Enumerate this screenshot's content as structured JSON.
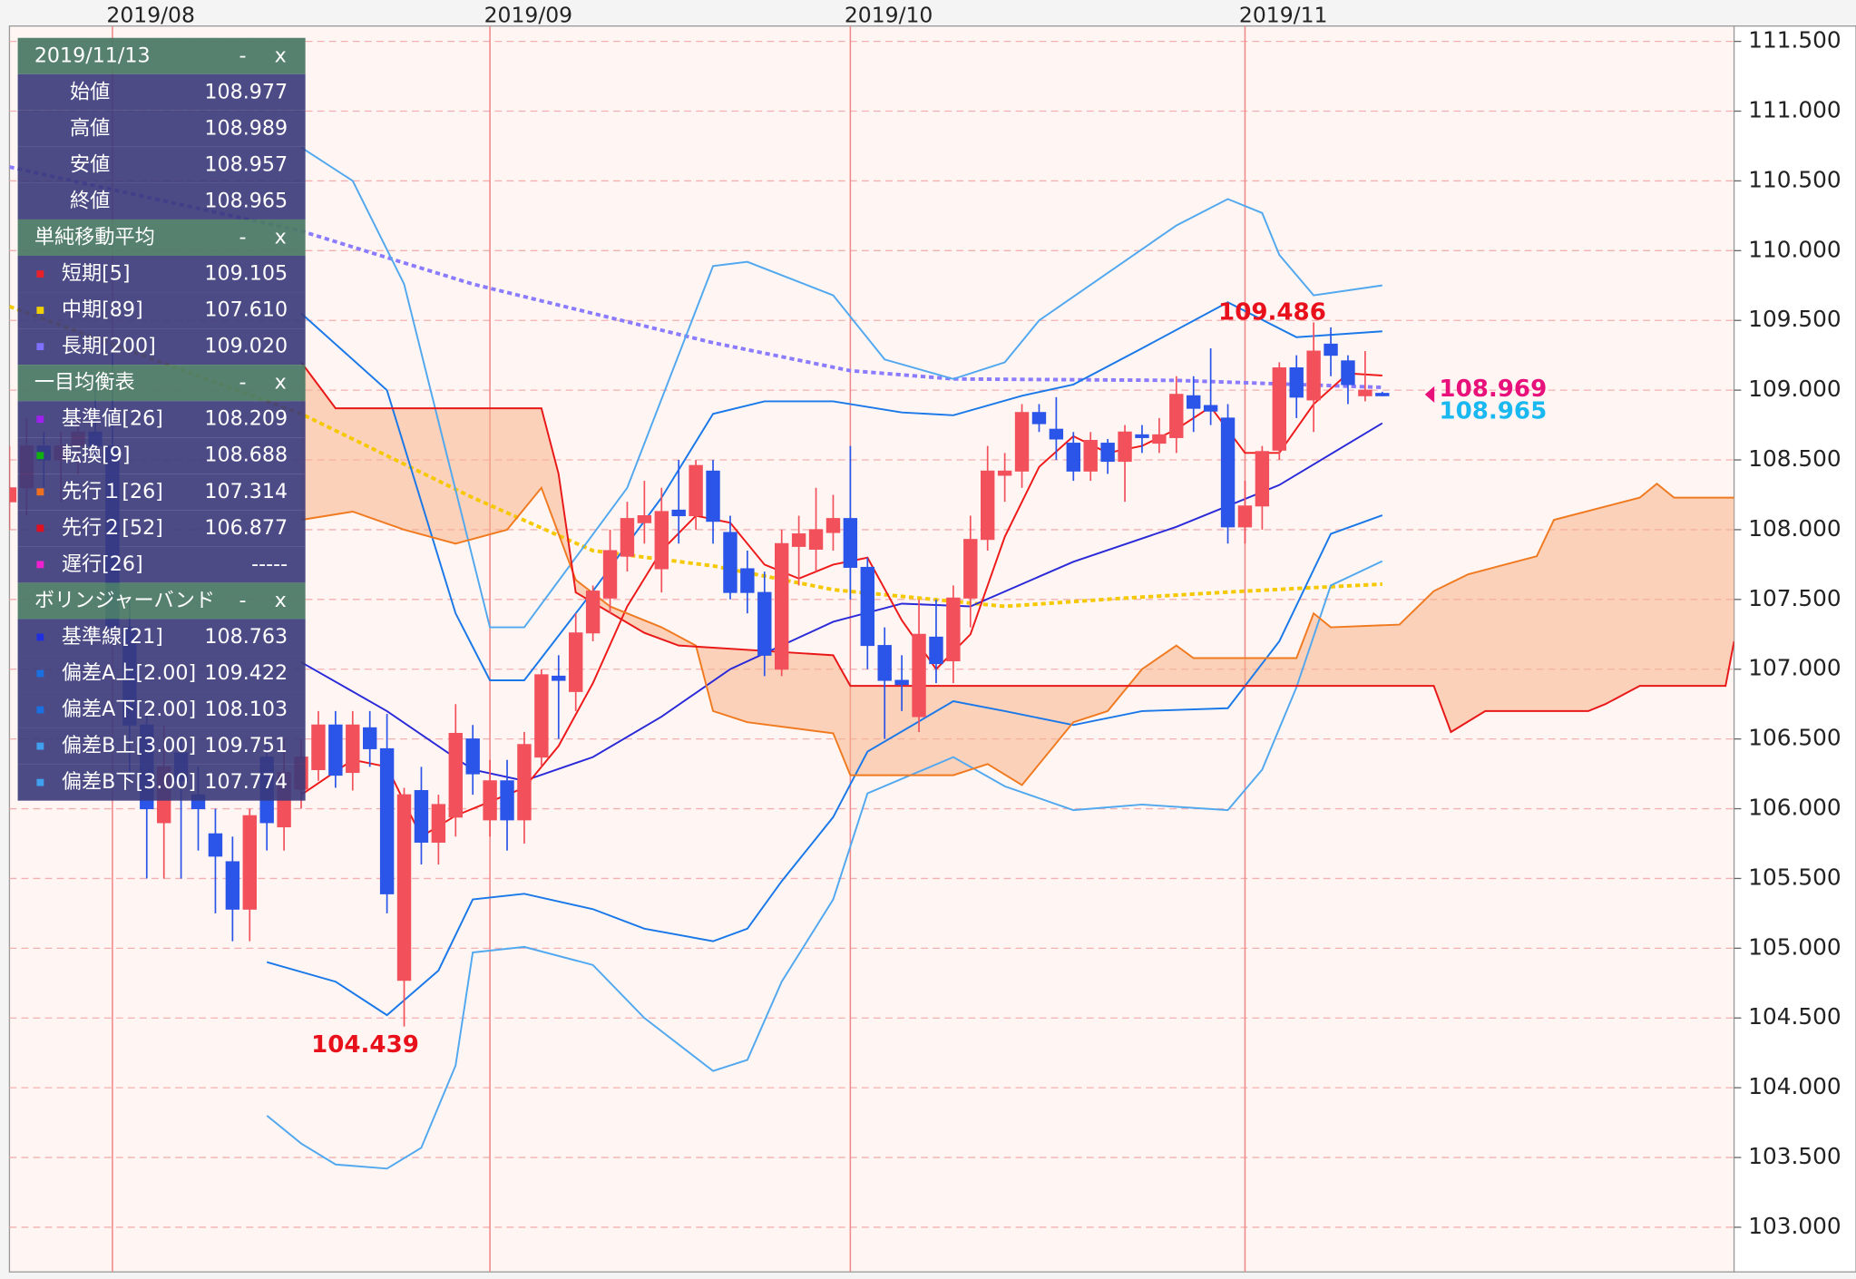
{
  "chart_data": {
    "type": "candlestick",
    "categories": [
      null,
      null,
      null,
      null,
      null,
      null,
      "2019/08",
      null,
      null,
      null,
      null,
      null,
      null,
      null,
      null,
      null,
      null,
      null,
      null,
      null,
      null,
      null,
      null,
      null,
      null,
      null,
      null,
      null,
      "2019/09",
      null,
      null,
      null,
      null,
      null,
      null,
      null,
      null,
      null,
      null,
      null,
      null,
      null,
      null,
      null,
      null,
      null,
      null,
      null,
      null,
      "2019/10",
      null,
      null,
      null,
      null,
      null,
      null,
      null,
      null,
      null,
      null,
      null,
      null,
      null,
      null,
      null,
      null,
      null,
      null,
      null,
      null,
      null,
      null,
      "2019/11",
      null,
      null,
      null,
      null,
      null,
      null,
      null,
      null
    ],
    "open": [
      108.2,
      108.3,
      108.6,
      108.5,
      108.6,
      108.7,
      108.6,
      107.3,
      106.6,
      105.9,
      106.4,
      106.1,
      105.82,
      105.62,
      105.28,
      106.37,
      105.87,
      106.14,
      106.28,
      106.6,
      106.26,
      106.58,
      106.43,
      104.77,
      106.13,
      105.76,
      105.94,
      106.5,
      105.92,
      106.2,
      105.92,
      106.37,
      106.95,
      106.84,
      107.26,
      107.51,
      107.81,
      108.05,
      107.72,
      108.14,
      108.1,
      108.42,
      107.98,
      107.72,
      107.55,
      107.0,
      107.88,
      107.86,
      107.98,
      108.08,
      107.73,
      107.17,
      106.92,
      106.66,
      107.23,
      107.06,
      107.51,
      107.93,
      108.39,
      108.42,
      108.84,
      108.72,
      108.62,
      108.42,
      108.62,
      108.49,
      108.68,
      108.62,
      108.66,
      108.96,
      108.89,
      108.8,
      108.02,
      108.17,
      108.57,
      109.16,
      108.93,
      109.33,
      109.21,
      108.96,
      108.977
    ],
    "high": [
      108.6,
      108.8,
      108.7,
      108.7,
      108.8,
      109.1,
      109.3,
      107.5,
      106.7,
      106.6,
      106.5,
      106.3,
      106.0,
      105.8,
      106.0,
      106.5,
      106.5,
      106.5,
      106.7,
      106.7,
      106.7,
      106.7,
      106.68,
      106.15,
      106.3,
      106.1,
      106.75,
      106.6,
      106.35,
      106.35,
      106.55,
      107.0,
      107.1,
      107.4,
      107.6,
      108.0,
      108.2,
      108.35,
      108.3,
      108.5,
      108.5,
      108.5,
      108.1,
      107.85,
      107.7,
      108.0,
      108.1,
      108.3,
      108.25,
      108.6,
      107.8,
      107.3,
      107.1,
      107.5,
      107.5,
      107.6,
      108.1,
      108.6,
      108.55,
      108.9,
      108.9,
      108.95,
      108.7,
      108.7,
      108.65,
      108.75,
      108.75,
      108.8,
      109.1,
      109.1,
      109.3,
      108.9,
      108.35,
      108.6,
      109.2,
      109.25,
      109.486,
      109.45,
      109.25,
      109.28,
      108.989
    ],
    "low": [
      108.0,
      108.1,
      108.3,
      108.2,
      108.4,
      108.5,
      107.2,
      106.2,
      105.5,
      105.5,
      105.5,
      105.7,
      105.25,
      105.05,
      105.05,
      105.7,
      105.7,
      106.0,
      106.2,
      106.15,
      106.13,
      106.3,
      105.25,
      104.439,
      105.6,
      105.6,
      105.8,
      106.1,
      105.8,
      105.7,
      105.75,
      106.3,
      106.5,
      106.7,
      107.2,
      107.4,
      107.7,
      107.9,
      107.55,
      107.9,
      108.0,
      107.9,
      107.5,
      107.4,
      106.95,
      106.95,
      107.6,
      107.7,
      107.85,
      107.5,
      107.0,
      106.5,
      106.7,
      106.55,
      106.9,
      106.9,
      107.3,
      107.85,
      108.2,
      108.3,
      108.7,
      108.5,
      108.35,
      108.35,
      108.4,
      108.2,
      108.55,
      108.55,
      108.55,
      108.7,
      108.75,
      107.9,
      107.9,
      108.0,
      108.5,
      108.8,
      108.7,
      109.1,
      108.9,
      108.92,
      108.957
    ],
    "close": [
      108.3,
      108.6,
      108.5,
      108.6,
      108.7,
      108.6,
      107.3,
      106.6,
      106.0,
      106.3,
      106.2,
      106.0,
      105.66,
      105.28,
      105.95,
      105.9,
      106.26,
      106.37,
      106.6,
      106.24,
      106.6,
      106.43,
      105.39,
      106.1,
      105.76,
      106.03,
      106.54,
      106.25,
      106.2,
      105.92,
      106.46,
      106.96,
      106.92,
      107.26,
      107.56,
      107.85,
      108.08,
      108.1,
      108.13,
      108.1,
      108.46,
      108.06,
      107.55,
      107.55,
      107.1,
      107.9,
      107.97,
      108.0,
      108.08,
      107.73,
      107.17,
      106.92,
      106.89,
      107.25,
      107.04,
      107.51,
      107.93,
      108.42,
      108.42,
      108.84,
      108.76,
      108.65,
      108.42,
      108.64,
      108.49,
      108.7,
      108.66,
      108.68,
      108.97,
      108.87,
      108.85,
      108.02,
      108.17,
      108.56,
      109.16,
      108.95,
      109.28,
      109.25,
      109.04,
      109.0,
      108.965
    ],
    "up_color": "#f2505a",
    "down_color": "#2a55e8",
    "series": [
      {
        "color": "#8a7bff",
        "dash": true,
        "x": [
          0,
          17,
          27,
          41,
          49,
          55,
          68,
          80
        ],
        "values": [
          110.6,
          110.14,
          109.76,
          109.34,
          109.14,
          109.08,
          109.07,
          109.02
        ]
      },
      {
        "color": "#f5c800",
        "dash": true,
        "x": [
          0,
          17,
          27,
          34,
          41,
          48,
          58,
          65,
          72,
          80
        ],
        "values": [
          109.6,
          108.83,
          108.23,
          107.85,
          107.74,
          107.57,
          107.45,
          107.51,
          107.56,
          107.61
        ]
      },
      {
        "color": "#52a8ee",
        "dash": false,
        "x": [
          17,
          20,
          23,
          28,
          30,
          36,
          41,
          43,
          48,
          51,
          55,
          58,
          60,
          64,
          68,
          71,
          73,
          74,
          76,
          80
        ],
        "values": [
          110.74,
          110.5,
          109.76,
          107.3,
          107.3,
          108.3,
          109.89,
          109.92,
          109.68,
          109.22,
          109.08,
          109.2,
          109.5,
          109.84,
          110.18,
          110.37,
          110.27,
          109.97,
          109.68,
          109.751
        ]
      },
      {
        "color": "#52a8ee",
        "dash": false,
        "x": [
          15,
          17,
          19,
          22,
          24,
          26,
          27,
          30,
          34,
          37,
          41,
          43,
          45,
          48,
          50,
          55,
          58,
          62,
          66,
          71,
          73,
          75,
          77,
          80
        ],
        "values": [
          103.8,
          103.6,
          103.45,
          103.42,
          103.57,
          104.16,
          104.97,
          105.01,
          104.88,
          104.5,
          104.12,
          104.2,
          104.76,
          105.35,
          106.11,
          106.37,
          106.16,
          105.99,
          106.03,
          105.99,
          106.28,
          106.87,
          107.6,
          107.774
        ]
      },
      {
        "color": "#1a78e8",
        "dash": false,
        "x": [
          17,
          22,
          26,
          28,
          30,
          34,
          38,
          41,
          44,
          48,
          52,
          55,
          59,
          62,
          66,
          71,
          75,
          80
        ],
        "values": [
          109.55,
          109.0,
          107.4,
          106.92,
          106.92,
          107.56,
          108.23,
          108.83,
          108.92,
          108.92,
          108.84,
          108.82,
          108.96,
          109.04,
          109.3,
          109.63,
          109.38,
          109.422
        ]
      },
      {
        "color": "#1a78e8",
        "dash": false,
        "x": [
          15,
          19,
          22,
          25,
          27,
          30,
          34,
          37,
          41,
          43,
          45,
          48,
          50,
          55,
          58,
          62,
          66,
          71,
          74,
          77,
          80
        ],
        "values": [
          104.9,
          104.76,
          104.52,
          104.84,
          105.35,
          105.39,
          105.28,
          105.14,
          105.05,
          105.14,
          105.48,
          105.94,
          106.41,
          106.77,
          106.7,
          106.6,
          106.7,
          106.72,
          107.2,
          107.97,
          108.103
        ]
      },
      {
        "color": "#2a2ad8",
        "dash": false,
        "x": [
          17,
          22,
          27,
          30,
          34,
          38,
          42,
          48,
          52,
          56,
          62,
          68,
          74,
          80
        ],
        "values": [
          107.05,
          106.7,
          106.28,
          106.2,
          106.37,
          106.66,
          107.0,
          107.34,
          107.47,
          107.45,
          107.77,
          108.02,
          108.32,
          108.763
        ]
      },
      {
        "color": "#ee1a1a",
        "dash": false,
        "x": [
          17,
          20,
          22,
          24,
          26,
          28,
          30,
          32,
          34,
          36,
          38,
          40,
          42,
          44,
          46,
          48,
          50,
          52,
          54,
          56,
          58,
          60,
          62,
          64,
          66,
          68,
          70,
          72,
          74,
          76,
          78,
          80
        ],
        "values": [
          106.1,
          106.35,
          106.3,
          105.8,
          105.95,
          106.05,
          106.15,
          106.45,
          106.9,
          107.45,
          107.85,
          108.1,
          108.05,
          107.75,
          107.65,
          107.75,
          107.8,
          107.35,
          107.0,
          107.25,
          107.95,
          108.45,
          108.67,
          108.55,
          108.6,
          108.72,
          108.88,
          108.55,
          108.55,
          108.9,
          109.12,
          109.105
        ]
      },
      {
        "color": "#f07a20",
        "dash": false,
        "x": [
          17,
          20,
          23,
          26,
          29,
          31,
          33,
          35,
          38,
          40,
          41,
          43,
          48,
          49,
          55,
          57,
          59,
          62,
          64,
          66,
          68,
          69,
          75,
          76,
          77,
          81,
          83,
          85,
          89,
          90,
          95,
          96,
          97,
          100.5
        ],
        "values": [
          108.07,
          108.13,
          108.0,
          107.9,
          108.0,
          108.3,
          107.64,
          107.45,
          107.3,
          107.17,
          106.7,
          106.62,
          106.54,
          106.24,
          106.24,
          106.32,
          106.17,
          106.62,
          106.7,
          107.0,
          107.17,
          107.08,
          107.08,
          107.4,
          107.3,
          107.32,
          107.56,
          107.68,
          107.81,
          108.07,
          108.23,
          108.33,
          108.23,
          108.23
        ]
      },
      {
        "color": "#e81818",
        "dash": false,
        "x": [
          17,
          19,
          31,
          32,
          33,
          37,
          39,
          48,
          49,
          83,
          84,
          86,
          92,
          93,
          95,
          100,
          100.5
        ],
        "values": [
          109.2,
          108.87,
          108.87,
          108.4,
          107.55,
          107.26,
          107.17,
          107.1,
          106.88,
          106.88,
          106.55,
          106.7,
          106.7,
          106.75,
          106.88,
          106.88,
          107.2
        ]
      }
    ],
    "cloud": {
      "series": [
        8,
        9
      ],
      "color": "#f8b38a"
    },
    "current_prices": [
      {
        "value": 108.969,
        "color": "#e8107a"
      }
    ],
    "last_color": "#1ab8f0",
    "xlim": [
      0,
      100.5
    ],
    "ylim": [
      102.68,
      111.61
    ],
    "yticks": [
      {
        "value": 103,
        "label": "103.000"
      },
      {
        "value": 103.5,
        "label": "103.500"
      },
      {
        "value": 104,
        "label": "104.000"
      },
      {
        "value": 104.5,
        "label": "104.500"
      },
      {
        "value": 105,
        "label": "105.000"
      },
      {
        "value": 105.5,
        "label": "105.500"
      },
      {
        "value": 106,
        "label": "106.000"
      },
      {
        "value": 106.5,
        "label": "106.500"
      },
      {
        "value": 107,
        "label": "107.000"
      },
      {
        "value": 107.5,
        "label": "107.500"
      },
      {
        "value": 108,
        "label": "108.000"
      },
      {
        "value": 108.5,
        "label": "108.500"
      },
      {
        "value": 109,
        "label": "109.000"
      },
      {
        "value": 109.5,
        "label": "109.500"
      },
      {
        "value": 110,
        "label": "110.000"
      },
      {
        "value": 110.5,
        "label": "110.500"
      },
      {
        "value": 111,
        "label": "111.000"
      },
      {
        "value": 111.5,
        "label": "111.500"
      }
    ],
    "grid": true
  },
  "info_panel": {
    "buttons": [
      "-",
      "x"
    ],
    "sections": [
      {
        "title": "2019/11/13",
        "rows": [
          {
            "label": "始値",
            "value": "108.977"
          },
          {
            "label": "高値",
            "value": "108.989"
          },
          {
            "label": "安値",
            "value": "108.957"
          },
          {
            "label": "終値",
            "value": "108.965"
          }
        ]
      },
      {
        "title": "単純移動平均",
        "rows": [
          {
            "label": "短期[5]",
            "value": "109.105",
            "color": "#e8202a"
          },
          {
            "label": "中期[89]",
            "value": "107.610",
            "color": "#f0d000"
          },
          {
            "label": "長期[200]",
            "value": "109.020",
            "color": "#8070ff"
          }
        ]
      },
      {
        "title": "一目均衡表",
        "rows": [
          {
            "label": "基準値[26]",
            "value": "108.209",
            "color": "#a020f0"
          },
          {
            "label": "転換[9]",
            "value": "108.688",
            "color": "#10b010"
          },
          {
            "label": "先行１[26]",
            "value": "107.314",
            "color": "#f07020"
          },
          {
            "label": "先行２[52]",
            "value": "106.877",
            "color": "#e01020"
          },
          {
            "label": "遅行[26]",
            "value": "-----",
            "color": "#f020d0"
          }
        ]
      },
      {
        "title": "ボリンジャーバンド",
        "rows": [
          {
            "label": "基準線[21]",
            "value": "108.763",
            "color": "#2030e0"
          },
          {
            "label": "偏差A上[2.00]",
            "value": "109.422",
            "color": "#1a70e0"
          },
          {
            "label": "偏差A下[2.00]",
            "value": "108.103",
            "color": "#1a70e0"
          },
          {
            "label": "偏差B上[3.00]",
            "value": "109.751",
            "color": "#40a0f0"
          },
          {
            "label": "偏差B下[3.00]",
            "value": "107.774",
            "color": "#40a0f0"
          }
        ]
      }
    ]
  }
}
